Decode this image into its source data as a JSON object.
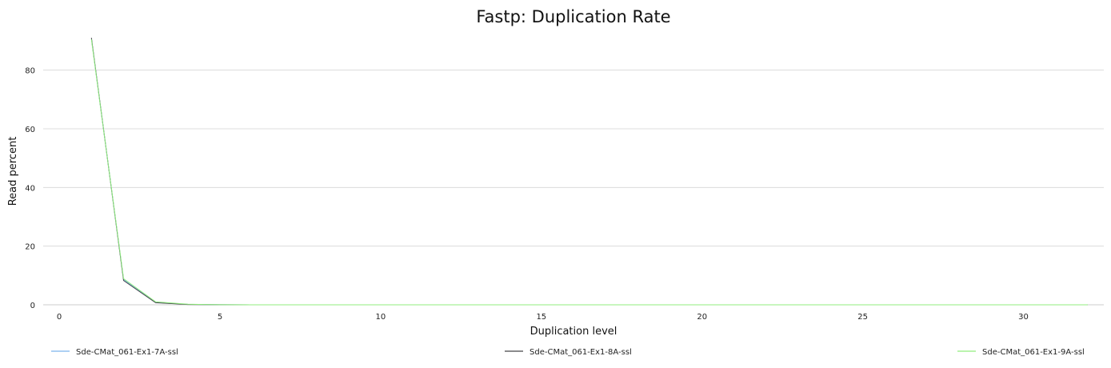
{
  "chart_data": {
    "type": "line",
    "title": "Fastp: Duplication Rate",
    "xlabel": "Duplication level",
    "ylabel": "Read percent",
    "xlim": [
      -0.5,
      32.5
    ],
    "ylim": [
      0,
      93
    ],
    "xticks": [
      0,
      5,
      10,
      15,
      20,
      25,
      30
    ],
    "yticks": [
      0,
      20,
      40,
      60,
      80
    ],
    "grid": true,
    "legend_position": "bottom",
    "series": [
      {
        "name": "Sde-CMat_061-Ex1-7A-ssl",
        "color": "#7cb5ec",
        "x": [
          1,
          2,
          3,
          4,
          5,
          6,
          7,
          8,
          9,
          10,
          11,
          12,
          13,
          14,
          15,
          16,
          17,
          18,
          19,
          20,
          21,
          22,
          23,
          24,
          25,
          26,
          27,
          28,
          29,
          30,
          31,
          32
        ],
        "y": [
          90.8,
          8.6,
          0.8,
          0.15,
          0.03,
          0.01,
          0,
          0,
          0,
          0,
          0,
          0,
          0,
          0,
          0,
          0,
          0,
          0,
          0,
          0,
          0,
          0,
          0,
          0,
          0,
          0,
          0,
          0,
          0,
          0,
          0,
          0
        ]
      },
      {
        "name": "Sde-CMat_061-Ex1-8A-ssl",
        "color": "#434348",
        "x": [
          1,
          2,
          3,
          4,
          5,
          6,
          7,
          8,
          9,
          10,
          11,
          12,
          13,
          14,
          15,
          16,
          17,
          18,
          19,
          20,
          21,
          22,
          23,
          24,
          25,
          26,
          27,
          28,
          29,
          30,
          31,
          32
        ],
        "y": [
          91.0,
          8.3,
          0.7,
          0.12,
          0.02,
          0.01,
          0,
          0,
          0,
          0,
          0,
          0,
          0,
          0,
          0,
          0,
          0,
          0,
          0,
          0,
          0,
          0,
          0,
          0,
          0,
          0,
          0,
          0,
          0,
          0,
          0,
          0
        ]
      },
      {
        "name": "Sde-CMat_061-Ex1-9A-ssl",
        "color": "#90ed7d",
        "x": [
          1,
          2,
          3,
          4,
          5,
          6,
          7,
          8,
          9,
          10,
          11,
          12,
          13,
          14,
          15,
          16,
          17,
          18,
          19,
          20,
          21,
          22,
          23,
          24,
          25,
          26,
          27,
          28,
          29,
          30,
          31,
          32
        ],
        "y": [
          90.5,
          8.9,
          1.0,
          0.2,
          0.04,
          0.01,
          0,
          0,
          0,
          0,
          0,
          0,
          0,
          0,
          0,
          0,
          0,
          0,
          0,
          0,
          0,
          0,
          0,
          0,
          0,
          0,
          0,
          0,
          0,
          0,
          0,
          0
        ]
      }
    ]
  }
}
